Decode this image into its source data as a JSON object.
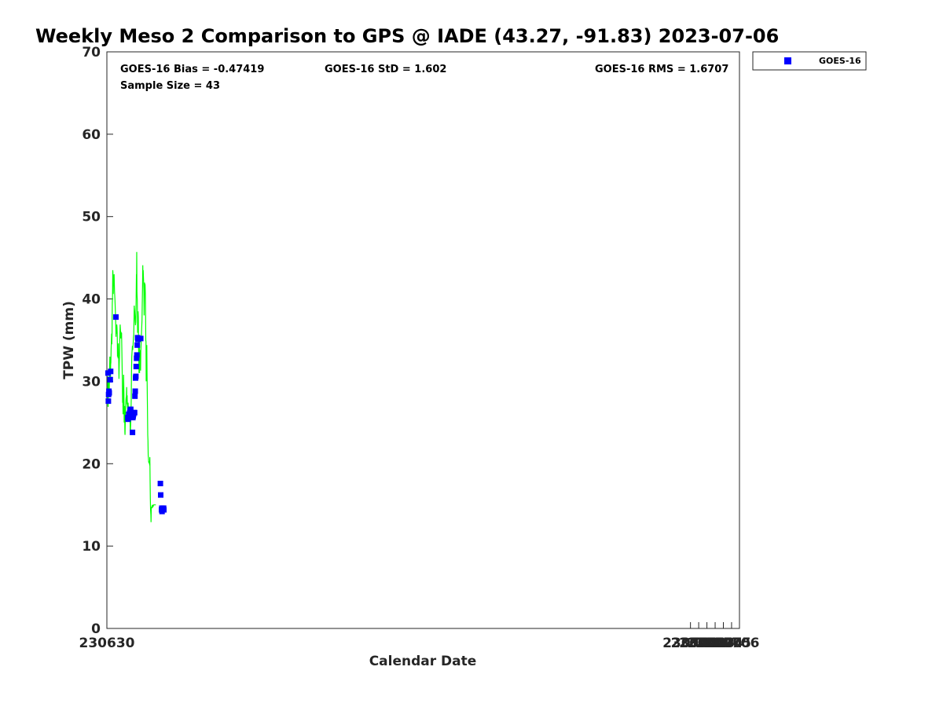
{
  "chart_data": {
    "type": "scatter",
    "title": "Weekly Meso 2 Comparison to GPS @ IADE (43.27, -91.83) 2023-07-06",
    "xlabel": "Calendar Date",
    "ylabel": "TPW (mm)",
    "xlim": [
      230630,
      230706.96
    ],
    "ylim": [
      0,
      70
    ],
    "x_ticks": [
      {
        "value": 230630,
        "label": "230630"
      },
      {
        "value": 230701,
        "label": "230701"
      },
      {
        "value": 230702,
        "label": "230702"
      },
      {
        "value": 230703,
        "label": "230703"
      },
      {
        "value": 230704,
        "label": "230704"
      },
      {
        "value": 230705,
        "label": "230705"
      },
      {
        "value": 230706,
        "label": "230706"
      }
    ],
    "y_ticks": [
      0,
      10,
      20,
      30,
      40,
      50,
      60,
      70
    ],
    "stats": {
      "bias": "GOES-16 Bias = -0.47419",
      "std": "GOES-16 StD = 1.602",
      "rms": "GOES-16 RMS = 1.6707",
      "sample": "Sample Size = 43"
    },
    "legend": {
      "position": "top-right",
      "label": "GOES-16",
      "color": "#0000ff"
    },
    "gps_color": "#00ff00",
    "gps_line": [
      [
        230630.1,
        30.6
      ],
      [
        230630.13,
        27.0
      ],
      [
        230630.15,
        26.9
      ],
      [
        230630.18,
        28.5
      ],
      [
        230630.21,
        30.1
      ],
      [
        230630.23,
        28.8
      ],
      [
        230630.25,
        29.9
      ],
      [
        230630.28,
        28.6
      ],
      [
        230630.3,
        29.4
      ],
      [
        230630.33,
        31.6
      ],
      [
        230630.36,
        33.0
      ],
      [
        230630.39,
        32.8
      ],
      [
        230630.41,
        30.9
      ],
      [
        230630.44,
        29.9
      ],
      [
        230630.46,
        32.0
      ],
      [
        230630.49,
        32.3
      ],
      [
        230630.52,
        33.9
      ],
      [
        230630.55,
        35.0
      ],
      [
        230630.58,
        35.8
      ],
      [
        230630.6,
        34.5
      ],
      [
        230630.63,
        35.9
      ],
      [
        230630.66,
        39.5
      ],
      [
        230630.69,
        40.2
      ],
      [
        230630.72,
        43.5
      ],
      [
        230630.74,
        43.2
      ],
      [
        230630.77,
        40.6
      ],
      [
        230630.8,
        42.5
      ],
      [
        230630.83,
        42.7
      ],
      [
        230630.88,
        43.0
      ],
      [
        230630.93,
        41.0
      ],
      [
        230630.98,
        39.9
      ],
      [
        230631.03,
        38.5
      ],
      [
        230631.07,
        37.3
      ],
      [
        230631.11,
        35.4
      ],
      [
        230631.13,
        36.5
      ],
      [
        230631.15,
        36.8
      ],
      [
        230631.18,
        35.8
      ],
      [
        230631.2,
        36.9
      ],
      [
        230631.23,
        36.5
      ],
      [
        230631.26,
        35.7
      ],
      [
        230631.29,
        33.0
      ],
      [
        230631.32,
        33.8
      ],
      [
        230631.36,
        32.8
      ],
      [
        230631.4,
        34.6
      ],
      [
        230631.44,
        32.4
      ],
      [
        230631.47,
        30.3
      ],
      [
        230631.5,
        32.0
      ],
      [
        230631.54,
        33.2
      ],
      [
        230631.58,
        35.5
      ],
      [
        230631.62,
        36.9
      ],
      [
        230631.66,
        36.0
      ],
      [
        230631.7,
        35.2
      ],
      [
        230631.73,
        36.0
      ],
      [
        230631.76,
        35.3
      ],
      [
        230631.79,
        35.9
      ],
      [
        230631.83,
        33.5
      ],
      [
        230631.87,
        30.5
      ],
      [
        230631.91,
        27.4
      ],
      [
        230631.94,
        28.0
      ],
      [
        230631.97,
        26.0
      ],
      [
        230632.01,
        28.8
      ],
      [
        230632.04,
        30.8
      ],
      [
        230632.07,
        28.5
      ],
      [
        230632.1,
        25.0
      ],
      [
        230632.13,
        26.8
      ],
      [
        230632.16,
        27.0
      ],
      [
        230632.19,
        23.8
      ],
      [
        230632.21,
        23.5
      ],
      [
        230632.24,
        25.0
      ],
      [
        230632.27,
        26.3
      ],
      [
        230632.3,
        27.5
      ],
      [
        230632.34,
        28.0
      ],
      [
        230632.38,
        28.2
      ],
      [
        230632.41,
        29.3
      ],
      [
        230632.44,
        27.2
      ],
      [
        230632.47,
        28.3
      ],
      [
        230632.5,
        27.0
      ],
      [
        230632.54,
        26.5
      ],
      [
        230632.58,
        27.4
      ],
      [
        230632.63,
        26.3
      ],
      [
        230632.68,
        25.3
      ],
      [
        230632.72,
        26.2
      ],
      [
        230632.75,
        26.9
      ],
      [
        230632.78,
        25.8
      ],
      [
        230632.8,
        26.7
      ],
      [
        230632.84,
        24.1
      ],
      [
        230632.87,
        24.0
      ],
      [
        230632.9,
        24.8
      ],
      [
        230632.93,
        26.0
      ],
      [
        230632.96,
        27.8
      ],
      [
        230632.99,
        31.0
      ],
      [
        230633.03,
        33.0
      ],
      [
        230633.07,
        33.7
      ],
      [
        230633.11,
        34.3
      ],
      [
        230633.15,
        33.8
      ],
      [
        230633.19,
        34.5
      ],
      [
        230633.23,
        35.3
      ],
      [
        230633.27,
        35.7
      ],
      [
        230633.3,
        37.2
      ],
      [
        230633.33,
        39.2
      ],
      [
        230633.38,
        38.4
      ],
      [
        230633.43,
        37.5
      ],
      [
        230633.48,
        36.8
      ],
      [
        230633.52,
        37.2
      ],
      [
        230633.56,
        39.8
      ],
      [
        230633.59,
        43.0
      ],
      [
        230633.61,
        42.7
      ],
      [
        230633.63,
        45.7
      ],
      [
        230633.66,
        40.8
      ],
      [
        230633.7,
        39.8
      ],
      [
        230633.74,
        35.9
      ],
      [
        230633.77,
        37.6
      ],
      [
        230633.8,
        38.5
      ],
      [
        230633.82,
        37.8
      ],
      [
        230633.85,
        34.0
      ],
      [
        230633.88,
        33.0
      ],
      [
        230633.91,
        31.0
      ],
      [
        230633.94,
        35.0
      ],
      [
        230633.96,
        34.8
      ],
      [
        230633.98,
        31.0
      ],
      [
        230634.01,
        33.5
      ],
      [
        230634.04,
        33.8
      ],
      [
        230634.07,
        32.9
      ],
      [
        230634.1,
        31.3
      ],
      [
        230634.13,
        33.6
      ],
      [
        230634.17,
        34.6
      ],
      [
        230634.22,
        36.0
      ],
      [
        230634.27,
        37.4
      ],
      [
        230634.3,
        39.3
      ],
      [
        230634.34,
        41.6
      ],
      [
        230634.37,
        44.1
      ],
      [
        230634.39,
        42.5
      ],
      [
        230634.42,
        43.5
      ],
      [
        230634.46,
        42.2
      ],
      [
        230634.5,
        41.0
      ],
      [
        230634.53,
        38.0
      ],
      [
        230634.56,
        40.5
      ],
      [
        230634.59,
        42.0
      ],
      [
        230634.62,
        41.0
      ],
      [
        230634.65,
        41.8
      ],
      [
        230634.68,
        40.5
      ],
      [
        230634.71,
        37.8
      ],
      [
        230634.73,
        35.0
      ],
      [
        230634.76,
        34.8
      ],
      [
        230634.78,
        30.0
      ],
      [
        230634.81,
        32.5
      ],
      [
        230634.84,
        34.2
      ],
      [
        230634.86,
        34.4
      ],
      [
        230634.89,
        31.0
      ],
      [
        230634.93,
        27.0
      ],
      [
        230634.97,
        23.5
      ],
      [
        230635.0,
        22.8
      ],
      [
        230635.03,
        21.0
      ],
      [
        230635.06,
        20.7
      ],
      [
        230635.09,
        20.2
      ],
      [
        230635.13,
        20.1
      ],
      [
        230635.17,
        20.3
      ],
      [
        230635.21,
        19.8
      ],
      [
        230635.23,
        20.8
      ],
      [
        230635.26,
        18.0
      ],
      [
        230635.29,
        15.8
      ],
      [
        230635.32,
        14.4
      ],
      [
        230635.35,
        13.8
      ],
      [
        230635.37,
        12.9
      ],
      [
        230635.4,
        14.6
      ],
      [
        230635.44,
        14.7
      ],
      [
        230635.48,
        14.8
      ],
      [
        230635.52,
        14.6
      ],
      [
        230635.55,
        15.0
      ],
      [
        230635.59,
        14.8
      ],
      [
        230635.63,
        14.8
      ],
      [
        230635.68,
        15.0
      ],
      [
        230635.73,
        15.0
      ],
      [
        230635.78,
        15.0
      ],
      [
        230635.83,
        15.0
      ],
      [
        230635.88,
        15.0
      ],
      [
        230635.92,
        15.0
      ],
      [
        230635.96,
        15.0
      ]
    ],
    "series": [
      {
        "name": "GOES-16",
        "points": [
          [
            230630.14,
            31.0
          ],
          [
            230630.18,
            27.6
          ],
          [
            230630.21,
            28.4
          ],
          [
            230630.25,
            28.8
          ],
          [
            230630.29,
            28.6
          ],
          [
            230630.38,
            30.2
          ],
          [
            230630.41,
            30.2
          ],
          [
            230630.46,
            31.2
          ],
          [
            230631.1,
            37.8
          ],
          [
            230632.54,
            25.6
          ],
          [
            230632.57,
            25.4
          ],
          [
            230632.66,
            26.0
          ],
          [
            230632.7,
            26.0
          ],
          [
            230632.74,
            26.0
          ],
          [
            230632.78,
            26.2
          ],
          [
            230632.82,
            26.4
          ],
          [
            230632.86,
            26.6
          ],
          [
            230632.91,
            26.6
          ],
          [
            230633.12,
            23.8
          ],
          [
            230633.16,
            25.6
          ],
          [
            230633.2,
            25.8
          ],
          [
            230633.24,
            26.0
          ],
          [
            230633.29,
            26.2
          ],
          [
            230633.33,
            26.2
          ],
          [
            230633.37,
            26.2
          ],
          [
            230633.41,
            28.2
          ],
          [
            230633.45,
            28.8
          ],
          [
            230633.49,
            30.4
          ],
          [
            230633.53,
            30.6
          ],
          [
            230633.57,
            31.8
          ],
          [
            230633.61,
            32.8
          ],
          [
            230633.65,
            33.2
          ],
          [
            230633.7,
            34.4
          ],
          [
            230633.74,
            35.3
          ],
          [
            230633.78,
            35.1
          ],
          [
            230634.12,
            35.2
          ],
          [
            230636.51,
            17.6
          ],
          [
            230636.55,
            16.2
          ],
          [
            230636.64,
            14.4
          ],
          [
            230636.68,
            14.6
          ],
          [
            230636.71,
            14.2
          ],
          [
            230636.9,
            14.6
          ],
          [
            230636.93,
            14.4
          ]
        ]
      }
    ]
  }
}
